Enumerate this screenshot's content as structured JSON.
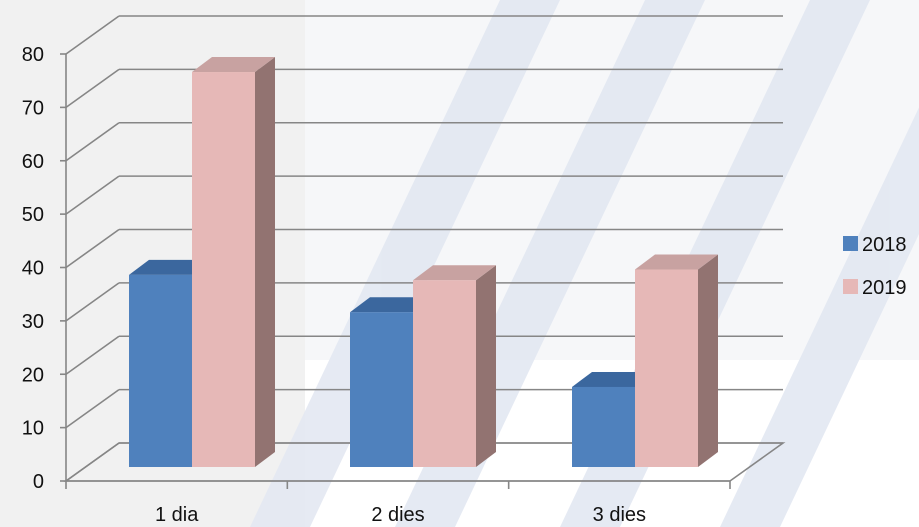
{
  "chart_data": {
    "type": "bar",
    "style": "3d-clustered-column",
    "categories": [
      "1 dia",
      "2 dies",
      "3 dies"
    ],
    "series": [
      {
        "name": "2018",
        "values": [
          36,
          29,
          15
        ],
        "color": "#4f81bd",
        "side_color": "#2f5a8c",
        "top_color": "#3b679e"
      },
      {
        "name": "2019",
        "values": [
          74,
          35,
          37
        ],
        "color": "#e6b8b7",
        "side_color": "#927371",
        "top_color": "#c8a2a1"
      }
    ],
    "ylim": [
      0,
      80
    ],
    "yticks": [
      0,
      10,
      20,
      30,
      40,
      50,
      60,
      70,
      80
    ],
    "grid": true,
    "legend_position": "right",
    "gridline_color": "#868686",
    "background_watermark": "diagonal-stripes"
  }
}
